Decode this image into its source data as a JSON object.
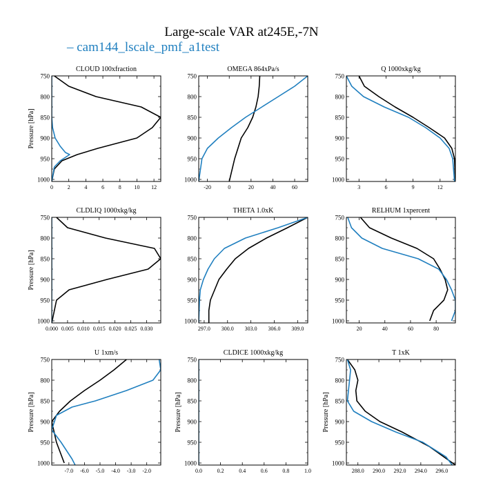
{
  "figure": {
    "title": "Large-scale VAR at245E,-7N",
    "legend": {
      "dash": "–",
      "label": "cam144_lscale_pmf_a1test",
      "color": "#1f7fbf"
    }
  },
  "colors": {
    "black_series": "#000000",
    "blue_series": "#1f7fbf"
  },
  "chart_data": [
    {
      "type": "line",
      "title": "CLOUD  100xfraction",
      "ylabel": "Pressure [hPa]",
      "xlim": [
        0,
        12.8
      ],
      "ylim": [
        1005,
        750
      ],
      "xticks": [
        {
          "v": 0,
          "label": "0"
        },
        {
          "v": 2,
          "label": "2"
        },
        {
          "v": 4,
          "label": "4"
        },
        {
          "v": 6,
          "label": "6"
        },
        {
          "v": 8,
          "label": "8"
        },
        {
          "v": 10,
          "label": "10"
        },
        {
          "v": 12,
          "label": "12"
        }
      ],
      "yticks": [
        {
          "v": 750,
          "label": "750"
        },
        {
          "v": 800,
          "label": "800"
        },
        {
          "v": 850,
          "label": "850"
        },
        {
          "v": 900,
          "label": "900"
        },
        {
          "v": 950,
          "label": "950"
        },
        {
          "v": 1000,
          "label": "1000"
        }
      ],
      "series": [
        {
          "color": "#000000",
          "x": [
            0.3,
            2.0,
            5.2,
            10.5,
            12.8,
            11.8,
            10.0,
            5.4,
            3.0,
            1.2,
            0.3,
            0.0
          ],
          "y": [
            750,
            775,
            800,
            825,
            850,
            875,
            900,
            925,
            940,
            955,
            975,
            1005
          ]
        },
        {
          "color": "#1f7fbf",
          "x": [
            0,
            0,
            0,
            0,
            0.1,
            0.4,
            1.0,
            1.6,
            2.1,
            1.0,
            0.3,
            0.0
          ],
          "y": [
            750,
            800,
            825,
            850,
            875,
            900,
            920,
            935,
            940,
            955,
            970,
            1005
          ]
        }
      ]
    },
    {
      "type": "line",
      "title": "OMEGA  864xPa/s",
      "ylabel": "",
      "xlim": [
        -28,
        72
      ],
      "ylim": [
        1005,
        750
      ],
      "xticks": [
        {
          "v": -20,
          "label": "-20"
        },
        {
          "v": 0,
          "label": "0"
        },
        {
          "v": 20,
          "label": "20"
        },
        {
          "v": 40,
          "label": "40"
        },
        {
          "v": 60,
          "label": "60"
        }
      ],
      "yticks": [
        {
          "v": 750,
          "label": "750"
        },
        {
          "v": 800,
          "label": "800"
        },
        {
          "v": 850,
          "label": "850"
        },
        {
          "v": 900,
          "label": "900"
        },
        {
          "v": 950,
          "label": "950"
        },
        {
          "v": 1000,
          "label": "1000"
        }
      ],
      "series": [
        {
          "color": "#000000",
          "x": [
            28,
            27.5,
            26.5,
            24.5,
            21.5,
            17,
            11,
            5,
            0
          ],
          "y": [
            750,
            775,
            800,
            825,
            850,
            875,
            900,
            950,
            1005
          ]
        },
        {
          "color": "#1f7fbf",
          "x": [
            72,
            60,
            45,
            30,
            15,
            2,
            -10,
            -20,
            -25,
            -28
          ],
          "y": [
            750,
            775,
            800,
            825,
            850,
            875,
            900,
            925,
            950,
            1005
          ]
        }
      ]
    },
    {
      "type": "line",
      "title": "Q  1000xkg/kg",
      "ylabel": "",
      "xlim": [
        1.6,
        13.7
      ],
      "ylim": [
        1005,
        750
      ],
      "xticks": [
        {
          "v": 3,
          "label": "3"
        },
        {
          "v": 6,
          "label": "6"
        },
        {
          "v": 9,
          "label": "9"
        },
        {
          "v": 12,
          "label": "12"
        }
      ],
      "yticks": [
        {
          "v": 750,
          "label": "750"
        },
        {
          "v": 800,
          "label": "800"
        },
        {
          "v": 850,
          "label": "850"
        },
        {
          "v": 900,
          "label": "900"
        },
        {
          "v": 950,
          "label": "950"
        },
        {
          "v": 1000,
          "label": "1000"
        }
      ],
      "series": [
        {
          "color": "#000000",
          "x": [
            3.0,
            3.6,
            5.2,
            7.0,
            9.0,
            10.8,
            12.5,
            13.3,
            13.6,
            13.7
          ],
          "y": [
            750,
            775,
            800,
            825,
            850,
            875,
            900,
            925,
            950,
            1005
          ]
        },
        {
          "color": "#1f7fbf",
          "x": [
            1.6,
            2.2,
            3.5,
            5.8,
            8.5,
            10.4,
            12.0,
            13.0,
            13.4,
            13.6
          ],
          "y": [
            750,
            775,
            800,
            825,
            850,
            875,
            900,
            925,
            950,
            1005
          ]
        }
      ]
    },
    {
      "type": "line",
      "title": "CLDLIQ  1000xkg/kg",
      "ylabel": "Pressure [hPa]",
      "xlim": [
        0,
        0.0345
      ],
      "ylim": [
        1005,
        750
      ],
      "xticks": [
        {
          "v": 0,
          "label": "0.000"
        },
        {
          "v": 0.005,
          "label": "0.005"
        },
        {
          "v": 0.01,
          "label": "0.010"
        },
        {
          "v": 0.015,
          "label": "0.015"
        },
        {
          "v": 0.02,
          "label": "0.020"
        },
        {
          "v": 0.025,
          "label": "0.025"
        },
        {
          "v": 0.03,
          "label": "0.030"
        }
      ],
      "yticks": [
        {
          "v": 750,
          "label": "750"
        },
        {
          "v": 800,
          "label": "800"
        },
        {
          "v": 850,
          "label": "850"
        },
        {
          "v": 900,
          "label": "900"
        },
        {
          "v": 950,
          "label": "950"
        },
        {
          "v": 1000,
          "label": "1000"
        }
      ],
      "series": [
        {
          "color": "#000000",
          "x": [
            0.0015,
            0.005,
            0.017,
            0.0325,
            0.0345,
            0.0305,
            0.0175,
            0.0055,
            0.0015,
            0.0
          ],
          "y": [
            750,
            775,
            800,
            825,
            850,
            875,
            900,
            925,
            950,
            1005
          ]
        },
        {
          "color": "#1f7fbf",
          "x": [
            0,
            0
          ],
          "y": [
            750,
            1005
          ]
        }
      ]
    },
    {
      "type": "line",
      "title": "THETA  1.0xK",
      "ylabel": "",
      "xlim": [
        296.3,
        310.3
      ],
      "ylim": [
        1005,
        750
      ],
      "xticks": [
        {
          "v": 297,
          "label": "297.0"
        },
        {
          "v": 300,
          "label": "300.0"
        },
        {
          "v": 303,
          "label": "303.0"
        },
        {
          "v": 306,
          "label": "306.0"
        },
        {
          "v": 309,
          "label": "309.0"
        }
      ],
      "yticks": [
        {
          "v": 750,
          "label": "750"
        },
        {
          "v": 800,
          "label": "800"
        },
        {
          "v": 850,
          "label": "850"
        },
        {
          "v": 900,
          "label": "900"
        },
        {
          "v": 950,
          "label": "950"
        },
        {
          "v": 1000,
          "label": "1000"
        }
      ],
      "series": [
        {
          "color": "#000000",
          "x": [
            310.3,
            307.7,
            305.0,
            302.7,
            301.0,
            299.9,
            298.9,
            297.8,
            297.6,
            297.6
          ],
          "y": [
            750,
            775,
            800,
            825,
            850,
            875,
            900,
            950,
            975,
            1005
          ]
        },
        {
          "color": "#1f7fbf",
          "x": [
            310.3,
            306.5,
            302.3,
            299.6,
            298.3,
            297.5,
            296.9,
            296.5,
            296.4,
            296.3
          ],
          "y": [
            750,
            775,
            800,
            825,
            850,
            875,
            900,
            925,
            950,
            1005
          ]
        }
      ]
    },
    {
      "type": "line",
      "title": "RELHUM  1xpercent",
      "ylabel": "",
      "xlim": [
        10,
        95
      ],
      "ylim": [
        1005,
        750
      ],
      "xticks": [
        {
          "v": 20,
          "label": "20"
        },
        {
          "v": 40,
          "label": "40"
        },
        {
          "v": 60,
          "label": "60"
        },
        {
          "v": 80,
          "label": "80"
        }
      ],
      "yticks": [
        {
          "v": 750,
          "label": "750"
        },
        {
          "v": 800,
          "label": "800"
        },
        {
          "v": 850,
          "label": "850"
        },
        {
          "v": 900,
          "label": "900"
        },
        {
          "v": 950,
          "label": "950"
        },
        {
          "v": 1000,
          "label": "1000"
        }
      ],
      "series": [
        {
          "color": "#000000",
          "x": [
            21,
            28,
            45,
            65,
            78,
            83,
            87,
            89,
            86,
            78,
            75
          ],
          "y": [
            750,
            775,
            800,
            825,
            850,
            875,
            900,
            925,
            950,
            975,
            1000
          ]
        },
        {
          "color": "#1f7fbf",
          "x": [
            11,
            14,
            22,
            38,
            66,
            82,
            88,
            92,
            95,
            95,
            92
          ],
          "y": [
            750,
            775,
            800,
            825,
            850,
            875,
            900,
            925,
            950,
            975,
            1000
          ]
        }
      ]
    },
    {
      "type": "line",
      "title": "U  1xm/s",
      "ylabel": "Pressure [hPa]",
      "xlim": [
        -8.1,
        -1.1
      ],
      "ylim": [
        1005,
        750
      ],
      "xticks": [
        {
          "v": -7,
          "label": "-7.0"
        },
        {
          "v": -6,
          "label": "-6.0"
        },
        {
          "v": -5,
          "label": "-5.0"
        },
        {
          "v": -4,
          "label": "-4.0"
        },
        {
          "v": -3,
          "label": "-3.0"
        },
        {
          "v": -2,
          "label": "-2.0"
        }
      ],
      "yticks": [
        {
          "v": 750,
          "label": "750"
        },
        {
          "v": 800,
          "label": "800"
        },
        {
          "v": 850,
          "label": "850"
        },
        {
          "v": 900,
          "label": "900"
        },
        {
          "v": 950,
          "label": "950"
        },
        {
          "v": 1000,
          "label": "1000"
        }
      ],
      "series": [
        {
          "color": "#000000",
          "x": [
            -3.3,
            -4.1,
            -5.0,
            -6.0,
            -6.9,
            -7.6,
            -8.1,
            -7.8,
            -7.3
          ],
          "y": [
            750,
            775,
            800,
            825,
            850,
            875,
            900,
            950,
            1000
          ]
        },
        {
          "color": "#1f7fbf",
          "x": [
            -1.2,
            -1.1,
            -1.6,
            -3.3,
            -5.3,
            -6.8,
            -7.8,
            -8.1,
            -7.5,
            -6.8,
            -6.6
          ],
          "y": [
            750,
            775,
            800,
            825,
            850,
            865,
            885,
            920,
            950,
            990,
            1005
          ]
        }
      ]
    },
    {
      "type": "line",
      "title": "CLDICE  1000xkg/kg",
      "ylabel": "Pressure [hPa]",
      "xlim": [
        0,
        1
      ],
      "ylim": [
        1005,
        750
      ],
      "xticks": [
        {
          "v": 0,
          "label": "0.0"
        },
        {
          "v": 0.2,
          "label": "0.2"
        },
        {
          "v": 0.4,
          "label": "0.4"
        },
        {
          "v": 0.6,
          "label": "0.6"
        },
        {
          "v": 0.8,
          "label": "0.8"
        },
        {
          "v": 1.0,
          "label": "1.0"
        }
      ],
      "yticks": [
        {
          "v": 750,
          "label": "750"
        },
        {
          "v": 800,
          "label": "800"
        },
        {
          "v": 850,
          "label": "850"
        },
        {
          "v": 900,
          "label": "900"
        },
        {
          "v": 950,
          "label": "950"
        },
        {
          "v": 1000,
          "label": "1000"
        }
      ],
      "series": [
        {
          "color": "#1f7fbf",
          "x": [
            0,
            0
          ],
          "y": [
            750,
            1005
          ]
        }
      ]
    },
    {
      "type": "line",
      "title": "T  1xK",
      "ylabel": "Pressure [hPa]",
      "xlim": [
        286.9,
        297.3
      ],
      "ylim": [
        1005,
        750
      ],
      "xticks": [
        {
          "v": 288,
          "label": "288.0"
        },
        {
          "v": 290,
          "label": "290.0"
        },
        {
          "v": 292,
          "label": "292.0"
        },
        {
          "v": 294,
          "label": "294.0"
        },
        {
          "v": 296,
          "label": "296.0"
        }
      ],
      "yticks": [
        {
          "v": 750,
          "label": "750"
        },
        {
          "v": 800,
          "label": "800"
        },
        {
          "v": 850,
          "label": "850"
        },
        {
          "v": 900,
          "label": "900"
        },
        {
          "v": 950,
          "label": "950"
        },
        {
          "v": 1000,
          "label": "1000"
        }
      ],
      "series": [
        {
          "color": "#000000",
          "x": [
            287.0,
            287.7,
            288.0,
            287.8,
            287.9,
            288.7,
            290.1,
            292.2,
            294.8,
            297.3
          ],
          "y": [
            750,
            775,
            800,
            825,
            850,
            875,
            900,
            925,
            960,
            1005
          ]
        },
        {
          "color": "#1f7fbf",
          "x": [
            287.0,
            287.3,
            287.2,
            287.1,
            287.0,
            287.6,
            289.3,
            291.6,
            294.2,
            296.4,
            297.0
          ],
          "y": [
            750,
            775,
            800,
            825,
            850,
            875,
            900,
            925,
            950,
            985,
            1005
          ]
        }
      ]
    }
  ]
}
